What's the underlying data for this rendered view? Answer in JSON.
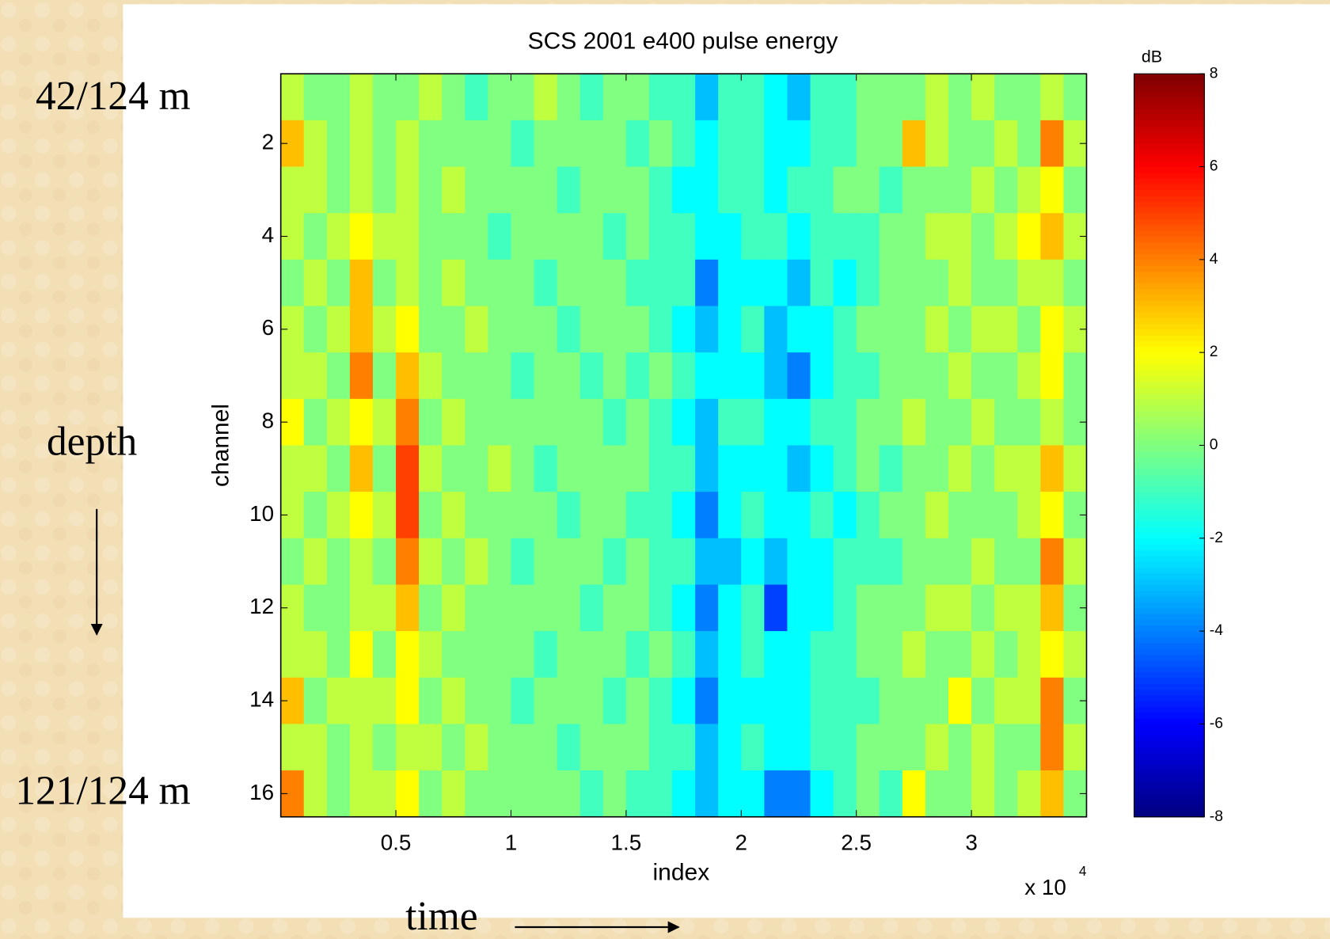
{
  "chart_data": {
    "type": "heatmap",
    "title": "SCS 2001 e400 pulse energy",
    "x_label": "index",
    "y_label": "channel",
    "x_multiplier": "x 10",
    "x_multiplier_exp": "4",
    "x": [
      0.05,
      0.15,
      0.25,
      0.35,
      0.45,
      0.55,
      0.65,
      0.75,
      0.85,
      0.95,
      1.05,
      1.15,
      1.25,
      1.35,
      1.45,
      1.55,
      1.65,
      1.75,
      1.85,
      1.95,
      2.05,
      2.15,
      2.25,
      2.35,
      2.45,
      2.55,
      2.65,
      2.75,
      2.85,
      2.95,
      3.05,
      3.15,
      3.25,
      3.35,
      3.45
    ],
    "y": [
      1,
      2,
      3,
      4,
      5,
      6,
      7,
      8,
      9,
      10,
      11,
      12,
      13,
      14,
      15,
      16
    ],
    "z": [
      [
        1,
        0,
        0,
        1,
        0,
        0,
        1,
        0,
        -1,
        0,
        0,
        1,
        0,
        -1,
        0,
        0,
        -1,
        -1,
        -3,
        -1,
        -1,
        -2,
        -3,
        -1,
        -1,
        0,
        0,
        0,
        1,
        0,
        1,
        0,
        0,
        1,
        0
      ],
      [
        3,
        1,
        0,
        1,
        0,
        1,
        0,
        0,
        0,
        0,
        -1,
        0,
        0,
        0,
        0,
        -1,
        0,
        -1,
        -2,
        -1,
        -1,
        -2,
        -2,
        -1,
        -1,
        0,
        0,
        3,
        1,
        0,
        0,
        1,
        0,
        4,
        1
      ],
      [
        1,
        1,
        0,
        1,
        0,
        1,
        0,
        1,
        0,
        0,
        0,
        0,
        -1,
        0,
        0,
        0,
        -1,
        -2,
        -2,
        -1,
        -1,
        -2,
        -1,
        -1,
        0,
        0,
        -1,
        0,
        0,
        0,
        1,
        0,
        1,
        2,
        0
      ],
      [
        1,
        0,
        1,
        2,
        1,
        1,
        0,
        0,
        0,
        -1,
        0,
        0,
        0,
        0,
        -1,
        0,
        -1,
        -1,
        -2,
        -2,
        -1,
        -1,
        -2,
        -1,
        -1,
        -1,
        0,
        0,
        1,
        1,
        0,
        1,
        2,
        3,
        1
      ],
      [
        0,
        1,
        0,
        3,
        0,
        1,
        0,
        1,
        0,
        0,
        0,
        -1,
        0,
        0,
        0,
        -1,
        -1,
        -1,
        -4,
        -2,
        -2,
        -2,
        -3,
        -1,
        -2,
        -1,
        0,
        0,
        0,
        1,
        0,
        0,
        1,
        1,
        0
      ],
      [
        1,
        0,
        1,
        3,
        1,
        2,
        0,
        0,
        1,
        0,
        0,
        0,
        -1,
        0,
        0,
        0,
        -1,
        -2,
        -3,
        -2,
        -1,
        -3,
        -2,
        -2,
        -1,
        0,
        0,
        0,
        1,
        0,
        1,
        1,
        0,
        2,
        1
      ],
      [
        1,
        1,
        0,
        4,
        0,
        3,
        1,
        0,
        0,
        0,
        -1,
        0,
        0,
        -1,
        0,
        -1,
        0,
        -1,
        -2,
        -2,
        -2,
        -3,
        -4,
        -2,
        -1,
        -1,
        0,
        0,
        0,
        1,
        0,
        0,
        1,
        2,
        0
      ],
      [
        2,
        0,
        1,
        2,
        1,
        4,
        0,
        1,
        0,
        0,
        0,
        0,
        0,
        0,
        -1,
        0,
        -1,
        -2,
        -3,
        -1,
        -1,
        -2,
        -2,
        -1,
        -1,
        0,
        0,
        1,
        0,
        0,
        1,
        0,
        0,
        1,
        0
      ],
      [
        1,
        1,
        0,
        3,
        0,
        5,
        1,
        0,
        0,
        1,
        0,
        -1,
        0,
        0,
        0,
        0,
        -1,
        -1,
        -3,
        -2,
        -2,
        -2,
        -3,
        -2,
        -1,
        0,
        -1,
        0,
        0,
        1,
        0,
        1,
        1,
        3,
        1
      ],
      [
        1,
        0,
        1,
        2,
        1,
        5,
        0,
        1,
        0,
        0,
        0,
        0,
        -1,
        0,
        0,
        -1,
        -1,
        -2,
        -4,
        -2,
        -1,
        -2,
        -2,
        -1,
        -2,
        -1,
        0,
        0,
        1,
        0,
        0,
        0,
        1,
        2,
        0
      ],
      [
        0,
        1,
        0,
        1,
        0,
        4,
        1,
        0,
        1,
        0,
        -1,
        0,
        0,
        0,
        -1,
        0,
        -1,
        -1,
        -3,
        -3,
        -2,
        -3,
        -2,
        -2,
        -1,
        -1,
        -1,
        0,
        0,
        0,
        1,
        0,
        0,
        4,
        1
      ],
      [
        1,
        0,
        0,
        1,
        1,
        3,
        0,
        1,
        0,
        0,
        0,
        0,
        0,
        -1,
        0,
        0,
        -1,
        -2,
        -4,
        -2,
        -1,
        -5,
        -2,
        -2,
        -1,
        0,
        0,
        0,
        1,
        1,
        0,
        1,
        1,
        3,
        0
      ],
      [
        1,
        1,
        0,
        2,
        0,
        2,
        1,
        0,
        0,
        0,
        0,
        -1,
        0,
        0,
        0,
        -1,
        0,
        -1,
        -3,
        -2,
        -1,
        -2,
        -2,
        -1,
        -1,
        0,
        0,
        1,
        0,
        0,
        1,
        0,
        1,
        2,
        1
      ],
      [
        3,
        0,
        1,
        1,
        1,
        2,
        0,
        1,
        0,
        0,
        -1,
        0,
        0,
        0,
        -1,
        0,
        -1,
        -2,
        -4,
        -2,
        -2,
        -2,
        -2,
        -1,
        -1,
        -1,
        0,
        0,
        0,
        2,
        0,
        1,
        1,
        4,
        0
      ],
      [
        1,
        1,
        0,
        1,
        0,
        1,
        1,
        0,
        1,
        0,
        0,
        0,
        -1,
        0,
        0,
        0,
        -1,
        -1,
        -3,
        -2,
        -1,
        -2,
        -2,
        -1,
        -1,
        0,
        0,
        0,
        1,
        0,
        1,
        0,
        0,
        4,
        1
      ],
      [
        4,
        1,
        0,
        1,
        1,
        2,
        0,
        1,
        0,
        0,
        0,
        0,
        0,
        -1,
        0,
        -1,
        -1,
        -2,
        -3,
        -2,
        -2,
        -4,
        -4,
        -2,
        -1,
        0,
        -1,
        2,
        0,
        0,
        1,
        0,
        1,
        3,
        0
      ]
    ],
    "xlim": [
      0,
      3.5
    ],
    "xticks": [
      0.5,
      1,
      1.5,
      2,
      2.5,
      3
    ],
    "ylim": [
      0.5,
      16.5
    ],
    "yticks": [
      2,
      4,
      6,
      8,
      10,
      12,
      14,
      16
    ],
    "y_reversed": true,
    "colormap": "jet",
    "colorbar_label": "dB",
    "clim": [
      -8,
      8
    ],
    "cticks": [
      -8,
      -6,
      -4,
      -2,
      0,
      2,
      4,
      6,
      8
    ],
    "annotations": {
      "top_depth": "42/124  m",
      "bottom_depth": "121/124 m",
      "depth": "depth",
      "time": "time"
    }
  }
}
